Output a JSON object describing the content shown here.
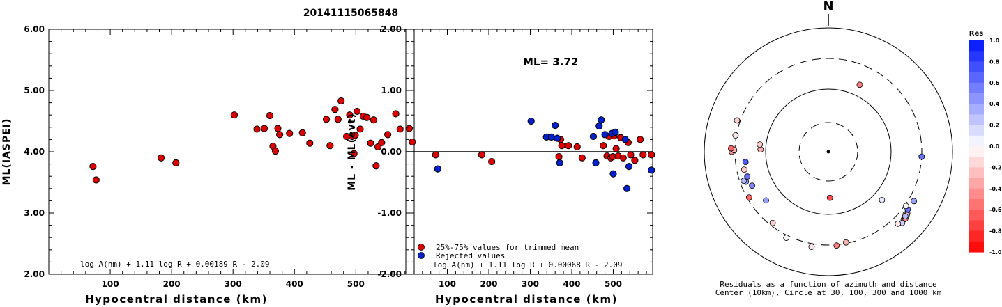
{
  "page_title": "20141115065848",
  "chart_data": [
    {
      "type": "scatter",
      "id": "ml_vs_distance",
      "xlabel": "Hypocentral distance (km)",
      "ylabel": "ML(IASPEI)",
      "xlim": [
        0,
        595
      ],
      "ylim": [
        2.0,
        6.0
      ],
      "xticks": [
        100,
        200,
        300,
        400,
        500
      ],
      "yticks": [
        "2.00",
        "3.00",
        "4.00",
        "5.00",
        "6.00"
      ],
      "formula": "log A(nm) + 1.11 log R + 0.00189 R - 2.09",
      "point_color": "#dd0000",
      "points": [
        [
          72,
          3.76
        ],
        [
          77,
          3.54
        ],
        [
          183,
          3.9
        ],
        [
          207,
          3.82
        ],
        [
          302,
          4.6
        ],
        [
          339,
          4.37
        ],
        [
          351,
          4.38
        ],
        [
          360,
          4.59
        ],
        [
          365,
          4.09
        ],
        [
          369,
          4.01
        ],
        [
          373,
          4.38
        ],
        [
          376,
          4.28
        ],
        [
          392,
          4.3
        ],
        [
          413,
          4.31
        ],
        [
          425,
          4.14
        ],
        [
          452,
          4.53
        ],
        [
          458,
          4.1
        ],
        [
          466,
          4.69
        ],
        [
          471,
          4.53
        ],
        [
          476,
          4.83
        ],
        [
          485,
          4.25
        ],
        [
          490,
          4.6
        ],
        [
          494,
          4.25
        ],
        [
          497,
          3.97
        ],
        [
          499,
          4.27
        ],
        [
          502,
          4.66
        ],
        [
          507,
          4.37
        ],
        [
          512,
          4.58
        ],
        [
          518,
          4.56
        ],
        [
          524,
          4.14
        ],
        [
          529,
          4.52
        ],
        [
          533,
          3.77
        ],
        [
          536,
          4.08
        ],
        [
          542,
          4.15
        ],
        [
          552,
          4.28
        ],
        [
          565,
          4.62
        ],
        [
          572,
          4.37
        ],
        [
          587,
          4.38
        ],
        [
          592,
          4.16
        ]
      ]
    },
    {
      "type": "scatter",
      "id": "residual_vs_distance",
      "xlabel": "Hypocentral distance (km)",
      "ylabel": "ML - ML(evt)",
      "xlim": [
        0,
        595
      ],
      "ylim": [
        -2.0,
        2.0
      ],
      "xticks": [
        100,
        200,
        300,
        400,
        500
      ],
      "yticks": [
        "-2.00",
        "-1.00",
        "0.00",
        "1.00",
        "2.00"
      ],
      "annotation": "ML= 3.72",
      "formula": "log A(nm) + 1.11 log R + 0.00068 R - 2.09",
      "legend": [
        {
          "label": "25%-75% values for trimmed mean",
          "color": "#dd0000"
        },
        {
          "label": "Rejected values",
          "color": "#0022cc"
        }
      ],
      "series": [
        {
          "name": "25%-75% values for trimmed mean",
          "color": "#dd0000",
          "points": [
            [
              72,
              -0.05
            ],
            [
              183,
              -0.05
            ],
            [
              207,
              -0.16
            ],
            [
              369,
              -0.08
            ],
            [
              373,
              0.2
            ],
            [
              376,
              0.1
            ],
            [
              392,
              0.1
            ],
            [
              413,
              0.08
            ],
            [
              425,
              -0.1
            ],
            [
              476,
              0.1
            ],
            [
              485,
              -0.07
            ],
            [
              490,
              0.25
            ],
            [
              494,
              -0.1
            ],
            [
              499,
              -0.08
            ],
            [
              502,
              0.26
            ],
            [
              507,
              0.05
            ],
            [
              512,
              -0.07
            ],
            [
              518,
              0.23
            ],
            [
              524,
              -0.1
            ],
            [
              536,
              0.15
            ],
            [
              542,
              -0.05
            ],
            [
              552,
              -0.14
            ],
            [
              565,
              0.2
            ],
            [
              572,
              -0.05
            ],
            [
              592,
              -0.05
            ]
          ]
        },
        {
          "name": "Rejected values",
          "color": "#0022cc",
          "points": [
            [
              77,
              -0.28
            ],
            [
              302,
              0.5
            ],
            [
              339,
              0.24
            ],
            [
              351,
              0.24
            ],
            [
              360,
              0.43
            ],
            [
              365,
              0.22
            ],
            [
              371,
              -0.18
            ],
            [
              452,
              0.25
            ],
            [
              458,
              -0.18
            ],
            [
              466,
              0.42
            ],
            [
              471,
              0.52
            ],
            [
              480,
              0.28
            ],
            [
              497,
              0.3
            ],
            [
              500,
              -0.36
            ],
            [
              505,
              0.32
            ],
            [
              529,
              0.2
            ],
            [
              533,
              -0.6
            ],
            [
              538,
              -0.24
            ],
            [
              592,
              -0.3
            ]
          ]
        }
      ]
    },
    {
      "type": "polar_scatter",
      "id": "residual_azimuth_map",
      "north_label": "N",
      "caption_line1": "Residuals as a function of azimuth and distance",
      "caption_line2": "Center (10km), Circle at 30, 100, 300 and 1000 km",
      "colorbar_title": "Res",
      "colorbar_ticks": [
        "1.0",
        "0.8",
        "0.6",
        "0.4",
        "0.2",
        "0.0",
        "-0.2",
        "-0.4",
        "-0.6",
        "-0.8",
        "-1.0"
      ],
      "rings_km": [
        30,
        100,
        300,
        1000
      ],
      "points": [
        {
          "az": 25,
          "dist": 150,
          "res": -0.5
        },
        {
          "az": 93,
          "dist": 300,
          "res": 0.6
        },
        {
          "az": 178,
          "dist": 55,
          "res": -0.7
        },
        {
          "az": 132,
          "dist": 140,
          "res": 0.1
        },
        {
          "az": 128,
          "dist": 390,
          "res": 0.5
        },
        {
          "az": 126,
          "dist": 360,
          "res": 0.6
        },
        {
          "az": 131,
          "dist": 400,
          "res": 0.7
        },
        {
          "az": 129,
          "dist": 380,
          "res": -0.3
        },
        {
          "az": 132,
          "dist": 410,
          "res": -0.4
        },
        {
          "az": 134,
          "dist": 430,
          "res": 0.2
        },
        {
          "az": 131,
          "dist": 420,
          "res": -0.5
        },
        {
          "az": 129,
          "dist": 400,
          "res": -0.2
        },
        {
          "az": 130,
          "dist": 395,
          "res": 0.3
        },
        {
          "az": 120,
          "dist": 370,
          "res": 0.4
        },
        {
          "az": 136,
          "dist": 390,
          "res": -0.1
        },
        {
          "az": 125,
          "dist": 315,
          "res": 0.0
        },
        {
          "az": 169,
          "dist": 290,
          "res": -0.3
        },
        {
          "az": 175,
          "dist": 310,
          "res": -0.5
        },
        {
          "az": 190,
          "dist": 340,
          "res": -0.1
        },
        {
          "az": 206,
          "dist": 330,
          "res": 0.0
        },
        {
          "az": 218,
          "dist": 270,
          "res": -0.2
        },
        {
          "az": 232,
          "dist": 180,
          "res": 0.4
        },
        {
          "az": 240,
          "dist": 280,
          "res": -0.6
        },
        {
          "az": 246,
          "dist": 210,
          "res": 0.5
        },
        {
          "az": 250,
          "dist": 245,
          "res": 0.4
        },
        {
          "az": 251,
          "dist": 260,
          "res": 0.3
        },
        {
          "az": 253,
          "dist": 220,
          "res": 0.6
        },
        {
          "az": 258,
          "dist": 230,
          "res": -0.2
        },
        {
          "az": 263,
          "dist": 210,
          "res": 0.7
        },
        {
          "az": 270,
          "dist": 340,
          "res": -0.4
        },
        {
          "az": 271,
          "dist": 310,
          "res": -0.3
        },
        {
          "az": 272,
          "dist": 350,
          "res": -0.6
        },
        {
          "az": 280,
          "dist": 310,
          "res": -0.1
        },
        {
          "az": 289,
          "dist": 340,
          "res": -0.2
        },
        {
          "az": 272,
          "dist": 120,
          "res": -0.3
        },
        {
          "az": 276,
          "dist": 125,
          "res": -0.2
        }
      ]
    }
  ]
}
